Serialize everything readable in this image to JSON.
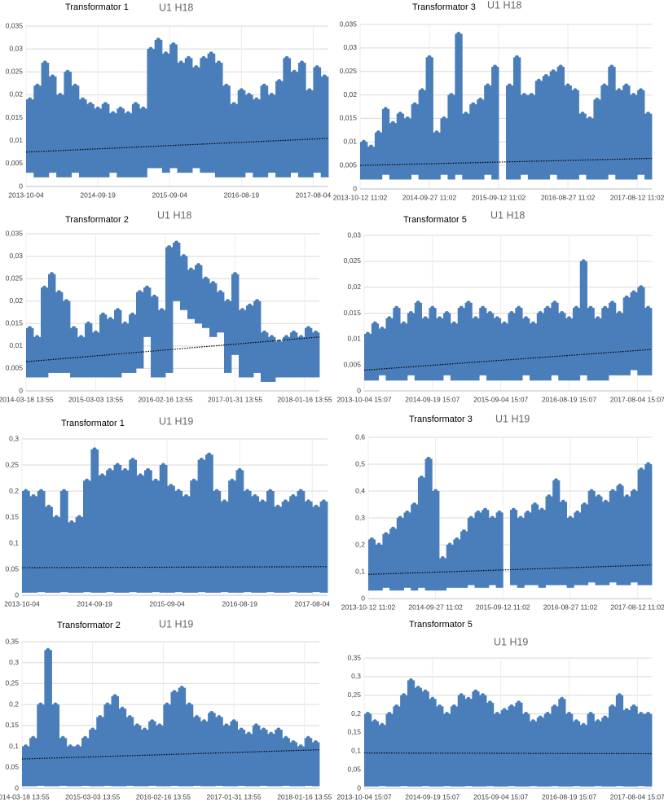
{
  "chart_data": [
    {
      "type": "range",
      "title": "Transformator 1",
      "subtitle": "U1 H18",
      "color": "#4a7ebb",
      "grid": true,
      "xlim": [
        0,
        40
      ],
      "xticks": [
        {
          "value": 0,
          "label": "2013-10-04"
        },
        {
          "value": 9.5,
          "label": "2014-09-19"
        },
        {
          "value": 19,
          "label": "2015-09-04"
        },
        {
          "value": 28.5,
          "label": "2016-08-19"
        },
        {
          "value": 38,
          "label": "2017-08-04"
        }
      ],
      "ylim": [
        0,
        0.035
      ],
      "yticks": [
        0,
        {
          "value": 0.005,
          "label": "0,005"
        },
        {
          "value": 0.01,
          "label": "0,01"
        },
        {
          "value": 0.015,
          "label": "0,015"
        },
        {
          "value": 0.02,
          "label": "0,02"
        },
        {
          "value": 0.025,
          "label": "0,025"
        },
        {
          "value": 0.03,
          "label": "0,03"
        },
        {
          "value": 0.035,
          "label": "0,035"
        }
      ],
      "high": [
        0.019,
        0.022,
        0.027,
        0.024,
        0.02,
        0.025,
        0.022,
        0.019,
        0.018,
        0.017,
        0.018,
        0.016,
        0.017,
        0.016,
        0.018,
        0.017,
        0.03,
        0.032,
        0.029,
        0.031,
        0.027,
        0.028,
        0.026,
        0.028,
        0.029,
        0.027,
        0.022,
        0.018,
        0.021,
        0.02,
        0.019,
        0.022,
        0.02,
        0.023,
        0.028,
        0.025,
        0.027,
        0.021,
        0.026,
        0.024
      ],
      "low": [
        0.003,
        0.002,
        0.002,
        0.003,
        0.002,
        0.002,
        0.003,
        0.002,
        0.002,
        0.002,
        0.002,
        0.003,
        0.002,
        0.002,
        0.002,
        0.002,
        0.004,
        0.004,
        0.003,
        0.004,
        0.003,
        0.003,
        0.004,
        0.003,
        0.003,
        0.002,
        0.002,
        0.002,
        0.002,
        0.003,
        0.002,
        0.002,
        0.003,
        0.002,
        0.002,
        0.003,
        0.002,
        0.002,
        0.003,
        0.002
      ],
      "trend": [
        0.0075,
        0.0105
      ]
    },
    {
      "type": "range",
      "title": "Transformator 3",
      "subtitle": "U1 H18",
      "color": "#4a7ebb",
      "grid": true,
      "xlim": [
        0,
        40
      ],
      "xticks": [
        {
          "value": 0,
          "label": "2013-10-12 11:02"
        },
        {
          "value": 9.5,
          "label": "2014-09-27 11:02"
        },
        {
          "value": 19,
          "label": "2015-09-12 11:02"
        },
        {
          "value": 28.5,
          "label": "2016-08-27 11:02"
        },
        {
          "value": 38,
          "label": "2017-08-12 11:02"
        }
      ],
      "ylim": [
        0,
        0.035
      ],
      "yticks": [
        0,
        {
          "value": 0.005,
          "label": "0,005"
        },
        {
          "value": 0.01,
          "label": "0,01"
        },
        {
          "value": 0.015,
          "label": "0,015"
        },
        {
          "value": 0.02,
          "label": "0,02"
        },
        {
          "value": 0.025,
          "label": "0,025"
        },
        {
          "value": 0.03,
          "label": "0,03"
        },
        {
          "value": 0.035,
          "label": "0,035"
        }
      ],
      "high": [
        0.01,
        0.009,
        0.012,
        0.017,
        0.014,
        0.016,
        0.015,
        0.018,
        0.021,
        0.028,
        0.012,
        0.015,
        0.02,
        0.033,
        0.016,
        0.018,
        0.019,
        0.022,
        0.026,
        null,
        0.022,
        0.028,
        0.02,
        0.02,
        0.023,
        0.024,
        0.025,
        0.026,
        0.022,
        0.021,
        0.016,
        0.015,
        0.019,
        0.022,
        0.026,
        0.021,
        0.022,
        0.02,
        0.021,
        0.016
      ],
      "low": [
        0.002,
        0.002,
        0.002,
        0.003,
        0.002,
        0.002,
        0.002,
        0.003,
        0.002,
        0.002,
        0.002,
        0.003,
        0.002,
        0.003,
        0.002,
        0.002,
        0.002,
        0.003,
        0.002,
        null,
        0.002,
        0.002,
        0.003,
        0.002,
        0.002,
        0.002,
        0.003,
        0.002,
        0.002,
        0.002,
        0.003,
        0.002,
        0.002,
        0.002,
        0.003,
        0.002,
        0.002,
        0.002,
        0.003,
        0.002
      ],
      "trend": [
        0.005,
        0.0065
      ]
    },
    {
      "type": "range",
      "title": "Transformator 2",
      "subtitle": "U1 H18",
      "color": "#4a7ebb",
      "grid": true,
      "xlim": [
        0,
        40
      ],
      "xticks": [
        {
          "value": 0,
          "label": "2014-03-18 13:55"
        },
        {
          "value": 9.5,
          "label": "2015-03-03 13:55"
        },
        {
          "value": 19,
          "label": "2016-02-16 13:55"
        },
        {
          "value": 28.5,
          "label": "2017-01-31 13:55"
        },
        {
          "value": 38,
          "label": "2018-01-16 13:55"
        }
      ],
      "ylim": [
        0,
        0.035
      ],
      "yticks": [
        0,
        {
          "value": 0.005,
          "label": "0,005"
        },
        {
          "value": 0.01,
          "label": "0,01"
        },
        {
          "value": 0.015,
          "label": "0,015"
        },
        {
          "value": 0.02,
          "label": "0,02"
        },
        {
          "value": 0.025,
          "label": "0,025"
        },
        {
          "value": 0.03,
          "label": "0,03"
        },
        {
          "value": 0.035,
          "label": "0,035"
        }
      ],
      "high": [
        0.014,
        0.012,
        0.023,
        0.026,
        0.022,
        0.02,
        0.014,
        0.012,
        0.015,
        0.013,
        0.017,
        0.016,
        0.018,
        0.015,
        0.017,
        0.022,
        0.023,
        0.021,
        0.018,
        0.032,
        0.033,
        0.03,
        0.027,
        0.028,
        0.025,
        0.024,
        0.022,
        0.02,
        0.026,
        0.018,
        0.019,
        0.02,
        0.013,
        0.012,
        0.011,
        0.012,
        0.013,
        0.012,
        0.014,
        0.013
      ],
      "low": [
        0.003,
        0.003,
        0.003,
        0.004,
        0.004,
        0.004,
        0.003,
        0.003,
        0.003,
        0.003,
        0.003,
        0.003,
        0.003,
        0.004,
        0.004,
        0.005,
        0.012,
        0.003,
        0.003,
        0.004,
        0.02,
        0.018,
        0.016,
        0.015,
        0.014,
        0.012,
        0.013,
        0.004,
        0.008,
        0.003,
        0.003,
        0.004,
        0.002,
        0.002,
        0.003,
        0.003,
        0.003,
        0.003,
        0.003,
        0.003
      ],
      "trend": [
        0.0065,
        0.012
      ]
    },
    {
      "type": "range",
      "title": "Transformator 5",
      "subtitle": "U1 H18",
      "color": "#4a7ebb",
      "grid": true,
      "xlim": [
        0,
        40
      ],
      "xticks": [
        {
          "value": 0,
          "label": "2013-10-04 15:07"
        },
        {
          "value": 9.5,
          "label": "2014-09-19 15:07"
        },
        {
          "value": 19,
          "label": "2015-09-04 15:07"
        },
        {
          "value": 28.5,
          "label": "2016-08-19 15:07"
        },
        {
          "value": 38,
          "label": "2017-08-04 15:07"
        }
      ],
      "ylim": [
        0,
        0.03
      ],
      "yticks": [
        0,
        {
          "value": 0.005,
          "label": "0,005"
        },
        {
          "value": 0.01,
          "label": "0,01"
        },
        {
          "value": 0.015,
          "label": "0,015"
        },
        {
          "value": 0.02,
          "label": "0,02"
        },
        {
          "value": 0.025,
          "label": "0,025"
        },
        {
          "value": 0.03,
          "label": "0,03"
        }
      ],
      "high": [
        0.011,
        0.013,
        0.012,
        0.014,
        0.016,
        0.013,
        0.015,
        0.017,
        0.014,
        0.016,
        0.014,
        0.015,
        0.013,
        0.016,
        0.017,
        0.014,
        0.016,
        0.015,
        0.014,
        0.013,
        0.015,
        0.016,
        0.014,
        0.013,
        0.015,
        0.016,
        0.017,
        0.015,
        0.014,
        0.016,
        0.025,
        0.016,
        0.014,
        0.016,
        0.017,
        0.015,
        0.018,
        0.019,
        0.02,
        0.016
      ],
      "low": [
        0.002,
        0.002,
        0.003,
        0.002,
        0.002,
        0.002,
        0.003,
        0.002,
        0.002,
        0.002,
        0.002,
        0.003,
        0.002,
        0.002,
        0.002,
        0.002,
        0.003,
        0.002,
        0.002,
        0.002,
        0.002,
        0.002,
        0.003,
        0.002,
        0.002,
        0.002,
        0.003,
        0.002,
        0.002,
        0.002,
        0.003,
        0.002,
        0.002,
        0.002,
        0.003,
        0.003,
        0.003,
        0.004,
        0.003,
        0.003
      ],
      "trend": [
        0.004,
        0.008
      ]
    },
    {
      "type": "range",
      "title": "Transformator 1",
      "subtitle": "U1 H19",
      "color": "#4a7ebb",
      "grid": true,
      "xlim": [
        0,
        40
      ],
      "xticks": [
        {
          "value": 0,
          "label": "2013-10-04"
        },
        {
          "value": 9.5,
          "label": "2014-09-19"
        },
        {
          "value": 19,
          "label": "2015-09-04"
        },
        {
          "value": 28.5,
          "label": "2016-08-19"
        },
        {
          "value": 38,
          "label": "2017-08-04"
        }
      ],
      "ylim": [
        0,
        0.3
      ],
      "yticks": [
        0,
        {
          "value": 0.05,
          "label": "0,05"
        },
        {
          "value": 0.1,
          "label": "0,1"
        },
        {
          "value": 0.15,
          "label": "0,15"
        },
        {
          "value": 0.2,
          "label": "0,2"
        },
        {
          "value": 0.25,
          "label": "0,25"
        },
        {
          "value": 0.3,
          "label": "0,3"
        }
      ],
      "high": [
        0.2,
        0.19,
        0.2,
        0.17,
        0.15,
        0.2,
        0.14,
        0.15,
        0.22,
        0.28,
        0.23,
        0.24,
        0.25,
        0.24,
        0.26,
        0.23,
        0.24,
        0.22,
        0.25,
        0.21,
        0.2,
        0.19,
        0.22,
        0.26,
        0.27,
        0.2,
        0.18,
        0.22,
        0.24,
        0.2,
        0.19,
        0.18,
        0.2,
        0.17,
        0.18,
        0.19,
        0.2,
        0.18,
        0.17,
        0.18
      ],
      "low": [
        0.005,
        0.005,
        0.006,
        0.005,
        0.005,
        0.006,
        0.005,
        0.005,
        0.006,
        0.005,
        0.005,
        0.006,
        0.005,
        0.005,
        0.006,
        0.005,
        0.005,
        0.006,
        0.005,
        0.005,
        0.006,
        0.005,
        0.005,
        0.006,
        0.005,
        0.005,
        0.006,
        0.005,
        0.005,
        0.006,
        0.005,
        0.005,
        0.006,
        0.005,
        0.005,
        0.006,
        0.005,
        0.005,
        0.006,
        0.005
      ],
      "trend": [
        0.053,
        0.055
      ]
    },
    {
      "type": "range",
      "title": "Transformator 3",
      "subtitle": "U1 H19",
      "color": "#4a7ebb",
      "grid": true,
      "xlim": [
        0,
        40
      ],
      "xticks": [
        {
          "value": 0,
          "label": "2013-10-12 11:02"
        },
        {
          "value": 9.5,
          "label": "2014-09-27 11:02"
        },
        {
          "value": 19,
          "label": "2015-09-12 11:02"
        },
        {
          "value": 28.5,
          "label": "2016-08-27 11:02"
        },
        {
          "value": 38,
          "label": "2017-08-12 11:02"
        }
      ],
      "ylim": [
        0,
        0.6
      ],
      "yticks": [
        0,
        {
          "value": 0.1,
          "label": "0,1"
        },
        {
          "value": 0.2,
          "label": "0,2"
        },
        {
          "value": 0.3,
          "label": "0,3"
        },
        {
          "value": 0.4,
          "label": "0,4"
        },
        {
          "value": 0.5,
          "label": "0,5"
        },
        {
          "value": 0.6,
          "label": "0,6"
        }
      ],
      "high": [
        0.22,
        0.2,
        0.24,
        0.26,
        0.3,
        0.32,
        0.35,
        0.45,
        0.52,
        0.4,
        0.15,
        0.2,
        0.22,
        0.25,
        0.3,
        0.32,
        0.33,
        0.3,
        0.32,
        null,
        0.33,
        0.3,
        0.32,
        0.35,
        0.33,
        0.38,
        0.44,
        0.36,
        0.3,
        0.32,
        0.35,
        0.4,
        0.38,
        0.36,
        0.4,
        0.42,
        0.38,
        0.4,
        0.48,
        0.5
      ],
      "low": [
        0.03,
        0.03,
        0.04,
        0.03,
        0.03,
        0.04,
        0.03,
        0.04,
        0.03,
        0.03,
        0.03,
        0.04,
        0.04,
        0.04,
        0.05,
        0.04,
        0.04,
        0.05,
        0.04,
        null,
        0.05,
        0.04,
        0.05,
        0.05,
        0.04,
        0.05,
        0.05,
        0.05,
        0.04,
        0.05,
        0.05,
        0.06,
        0.05,
        0.05,
        0.06,
        0.05,
        0.05,
        0.06,
        0.05,
        0.05
      ],
      "trend": [
        0.09,
        0.125
      ]
    },
    {
      "type": "range",
      "title": "Transformator 2",
      "subtitle": "U1 H19",
      "color": "#4a7ebb",
      "grid": true,
      "xlim": [
        0,
        40
      ],
      "xticks": [
        {
          "value": 0,
          "label": "2014-03-18 13:55"
        },
        {
          "value": 9.5,
          "label": "2015-03-03 13:55"
        },
        {
          "value": 19,
          "label": "2016-02-16 13:55"
        },
        {
          "value": 28.5,
          "label": "2017-01-31 13:55"
        },
        {
          "value": 38,
          "label": "2018-01-16 13:55"
        }
      ],
      "ylim": [
        0,
        0.35
      ],
      "yticks": [
        0,
        {
          "value": 0.05,
          "label": "0,05"
        },
        {
          "value": 0.1,
          "label": "0,1"
        },
        {
          "value": 0.15,
          "label": "0,15"
        },
        {
          "value": 0.2,
          "label": "0,2"
        },
        {
          "value": 0.25,
          "label": "0,25"
        },
        {
          "value": 0.3,
          "label": "0,3"
        },
        {
          "value": 0.35,
          "label": "0,35"
        }
      ],
      "high": [
        0.1,
        0.12,
        0.2,
        0.33,
        0.2,
        0.12,
        0.1,
        0.1,
        0.12,
        0.14,
        0.17,
        0.2,
        0.22,
        0.19,
        0.17,
        0.15,
        0.14,
        0.16,
        0.15,
        0.2,
        0.23,
        0.24,
        0.2,
        0.17,
        0.16,
        0.18,
        0.17,
        0.15,
        0.16,
        0.14,
        0.13,
        0.15,
        0.14,
        0.13,
        0.14,
        0.12,
        0.11,
        0.1,
        0.12,
        0.11
      ],
      "low": [
        0.005,
        0.005,
        0.006,
        0.005,
        0.005,
        0.006,
        0.005,
        0.005,
        0.006,
        0.005,
        0.005,
        0.006,
        0.005,
        0.005,
        0.006,
        0.005,
        0.005,
        0.006,
        0.005,
        0.005,
        0.006,
        0.005,
        0.005,
        0.006,
        0.005,
        0.005,
        0.006,
        0.005,
        0.005,
        0.006,
        0.005,
        0.005,
        0.006,
        0.005,
        0.005,
        0.006,
        0.005,
        0.005,
        0.006,
        0.005
      ],
      "trend": [
        0.07,
        0.092
      ]
    },
    {
      "type": "range",
      "title": "Transformator 5",
      "subtitle": "U1 H19",
      "color": "#4a7ebb",
      "grid": true,
      "xlim": [
        0,
        40
      ],
      "xticks": [
        {
          "value": 0,
          "label": "2013-10-04 15:07"
        },
        {
          "value": 9.5,
          "label": "2014-09-19 15:07"
        },
        {
          "value": 19,
          "label": "2015-09-04 15:07"
        },
        {
          "value": 28.5,
          "label": "2016-08-19 15:07"
        },
        {
          "value": 38,
          "label": "2017-08-04 15:07"
        }
      ],
      "ylim": [
        0,
        0.35
      ],
      "yticks": [
        0,
        {
          "value": 0.05,
          "label": "0,05"
        },
        {
          "value": 0.1,
          "label": "0,1"
        },
        {
          "value": 0.15,
          "label": "0,15"
        },
        {
          "value": 0.2,
          "label": "0,2"
        },
        {
          "value": 0.25,
          "label": "0,25"
        },
        {
          "value": 0.3,
          "label": "0,3"
        },
        {
          "value": 0.35,
          "label": "0,35"
        }
      ],
      "high": [
        0.2,
        0.18,
        0.17,
        0.2,
        0.22,
        0.25,
        0.29,
        0.27,
        0.26,
        0.24,
        0.22,
        0.2,
        0.22,
        0.25,
        0.24,
        0.26,
        0.25,
        0.23,
        0.2,
        0.21,
        0.22,
        0.23,
        0.2,
        0.18,
        0.19,
        0.2,
        0.22,
        0.24,
        0.2,
        0.18,
        0.17,
        0.2,
        0.18,
        0.19,
        0.22,
        0.25,
        0.21,
        0.22,
        0.2,
        0.2
      ],
      "low": [
        0.005,
        0.005,
        0.006,
        0.005,
        0.005,
        0.006,
        0.005,
        0.005,
        0.006,
        0.005,
        0.005,
        0.006,
        0.005,
        0.005,
        0.006,
        0.005,
        0.005,
        0.006,
        0.005,
        0.005,
        0.006,
        0.005,
        0.005,
        0.006,
        0.005,
        0.005,
        0.006,
        0.005,
        0.005,
        0.006,
        0.005,
        0.005,
        0.006,
        0.005,
        0.005,
        0.006,
        0.005,
        0.005,
        0.006,
        0.005
      ],
      "trend": [
        0.095,
        0.093
      ]
    }
  ]
}
